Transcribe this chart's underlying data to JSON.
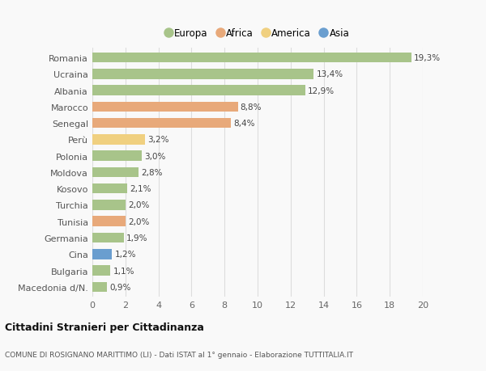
{
  "categories": [
    "Romania",
    "Ucraina",
    "Albania",
    "Marocco",
    "Senegal",
    "Perù",
    "Polonia",
    "Moldova",
    "Kosovo",
    "Turchia",
    "Tunisia",
    "Germania",
    "Cina",
    "Bulgaria",
    "Macedonia d/N."
  ],
  "values": [
    19.3,
    13.4,
    12.9,
    8.8,
    8.4,
    3.2,
    3.0,
    2.8,
    2.1,
    2.0,
    2.0,
    1.9,
    1.2,
    1.1,
    0.9
  ],
  "labels": [
    "19,3%",
    "13,4%",
    "12,9%",
    "8,8%",
    "8,4%",
    "3,2%",
    "3,0%",
    "2,8%",
    "2,1%",
    "2,0%",
    "2,0%",
    "1,9%",
    "1,2%",
    "1,1%",
    "0,9%"
  ],
  "colors": [
    "#a8c48a",
    "#a8c48a",
    "#a8c48a",
    "#e8a97a",
    "#e8a97a",
    "#f0d080",
    "#a8c48a",
    "#a8c48a",
    "#a8c48a",
    "#a8c48a",
    "#e8a97a",
    "#a8c48a",
    "#6a9ecf",
    "#a8c48a",
    "#a8c48a"
  ],
  "legend": [
    {
      "label": "Europa",
      "color": "#a8c48a"
    },
    {
      "label": "Africa",
      "color": "#e8a97a"
    },
    {
      "label": "America",
      "color": "#f0d080"
    },
    {
      "label": "Asia",
      "color": "#6a9ecf"
    }
  ],
  "xlim": [
    0,
    20
  ],
  "xticks": [
    0,
    2,
    4,
    6,
    8,
    10,
    12,
    14,
    16,
    18,
    20
  ],
  "title1": "Cittadini Stranieri per Cittadinanza",
  "title2": "COMUNE DI ROSIGNANO MARITTIMO (LI) - Dati ISTAT al 1° gennaio - Elaborazione TUTTITALIA.IT",
  "bg_color": "#f9f9f9",
  "grid_color": "#dddddd",
  "bar_height": 0.62
}
